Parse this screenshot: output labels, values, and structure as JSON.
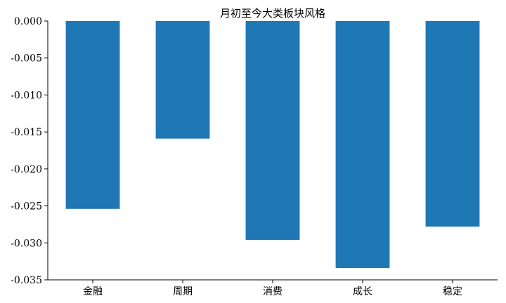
{
  "chart_data": {
    "type": "bar",
    "title": "月初至今大类板块风格",
    "xlabel": "",
    "ylabel": "",
    "categories": [
      "金融",
      "周期",
      "消费",
      "成长",
      "稳定"
    ],
    "values": [
      -0.0254,
      -0.0159,
      -0.0296,
      -0.0334,
      -0.0278
    ],
    "ylim": [
      -0.035,
      0.0
    ],
    "yticks": [
      "0.000",
      "-0.005",
      "-0.010",
      "-0.015",
      "-0.020",
      "-0.025",
      "-0.030",
      "-0.035"
    ],
    "bar_color": "#1f77b4",
    "grid": false
  }
}
